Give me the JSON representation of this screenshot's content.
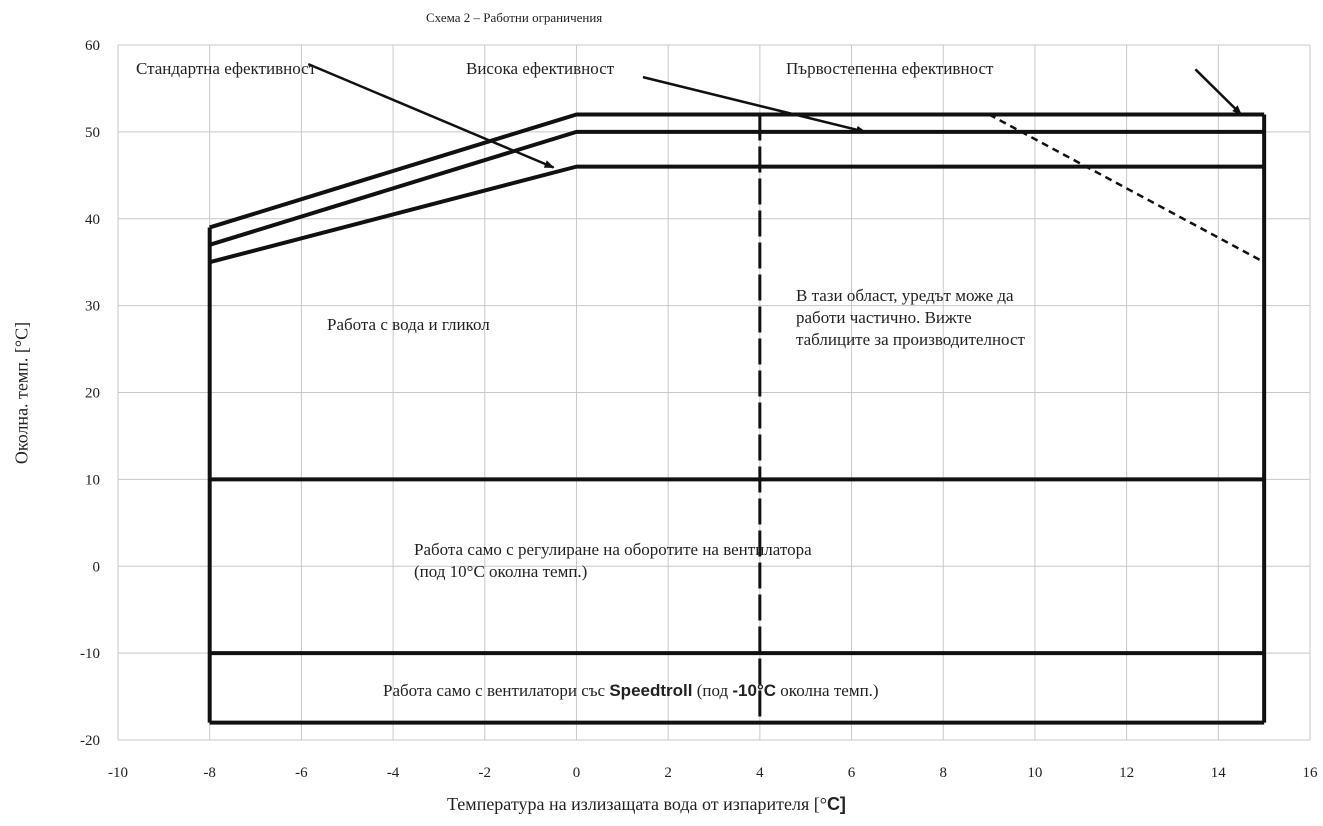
{
  "chart_data": {
    "type": "line",
    "title": "Схема 2 – Работни ограничения",
    "xlabel_text": "Температура на излизащата вода от изпарителя [°",
    "xlabel_unit": "C]",
    "ylabel": "Околна. темп. [°C]",
    "xlim": [
      -10,
      16
    ],
    "ylim": [
      -20,
      60
    ],
    "xticks": [
      -10,
      -8,
      -6,
      -4,
      -2,
      0,
      2,
      4,
      6,
      8,
      10,
      12,
      14,
      16
    ],
    "yticks": [
      -20,
      -10,
      0,
      10,
      20,
      30,
      40,
      50,
      60
    ],
    "grid": true,
    "series": [
      {
        "name": "Първостепенна ефективност",
        "x": [
          -8,
          0,
          15
        ],
        "y": [
          39,
          52,
          52
        ]
      },
      {
        "name": "Висока ефективност",
        "x": [
          -8,
          0,
          15
        ],
        "y": [
          37,
          50,
          50
        ]
      },
      {
        "name": "Стандартна ефективност",
        "x": [
          -8,
          0,
          15
        ],
        "y": [
          35,
          46,
          46
        ]
      }
    ],
    "envelope": {
      "x_min": -8,
      "x_max": 15,
      "y_min": -18,
      "y_top": 52,
      "y_left": 39
    },
    "horizontal_limits": [
      10,
      -10
    ],
    "partial_operation_boundary_x": 4,
    "dashed_limit": {
      "x": [
        9,
        15
      ],
      "y": [
        52,
        35
      ]
    },
    "annotations": {
      "standard": "Стандартна ефективност",
      "high": "Висока ефективност",
      "premium": "Първостепенна ефективност",
      "glycol": "Работа с вода и гликол",
      "partial_1": "В тази област, уредът може да",
      "partial_2": "работи частично. Вижте",
      "partial_3": "таблиците за производителност",
      "fan_1": "Работа само с регулиране на оборотите на вентилатора",
      "fan_2": "(под 10°C околна темп.)",
      "speedtroll_a": "Работа само с вентилатори със ",
      "speedtroll_b": "Speedtroll",
      "speedtroll_c": " (под ",
      "speedtroll_d": "-10°C",
      "speedtroll_e": " околна темп.)"
    }
  }
}
